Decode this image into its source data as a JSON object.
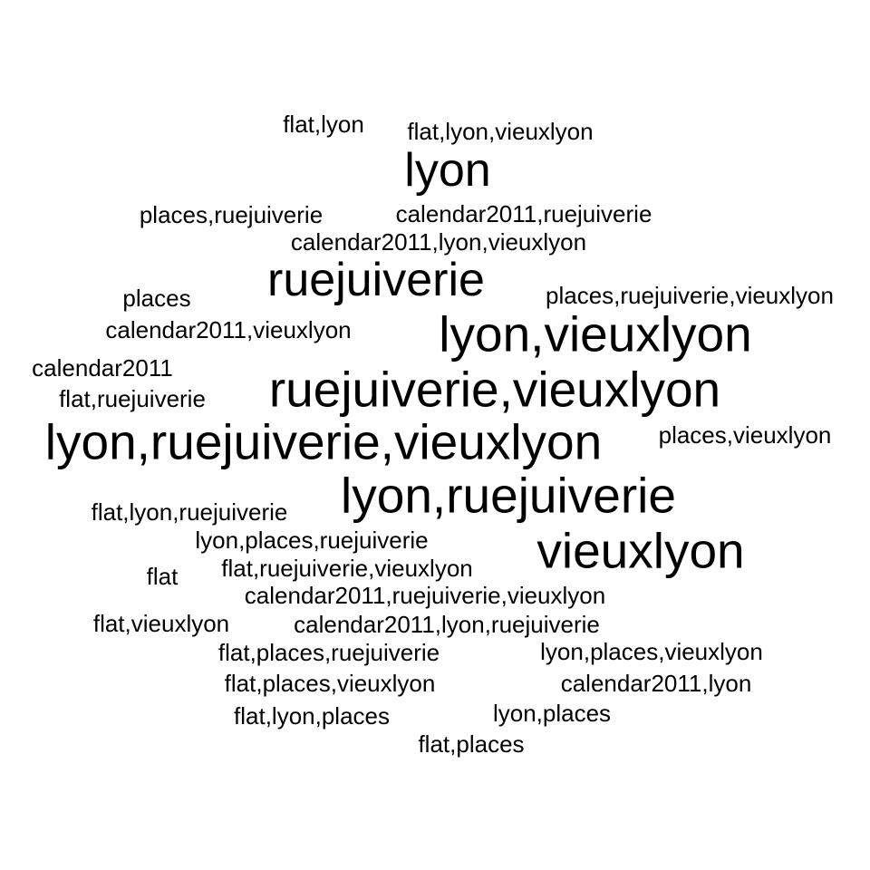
{
  "words": [
    {
      "text": "flat,lyon",
      "weight": 1
    },
    {
      "text": "flat,lyon,vieuxlyon",
      "weight": 1
    },
    {
      "text": "lyon",
      "weight": 2
    },
    {
      "text": "places,ruejuiverie",
      "weight": 1
    },
    {
      "text": "calendar2011,ruejuiverie",
      "weight": 1
    },
    {
      "text": "calendar2011,lyon,vieuxlyon",
      "weight": 1
    },
    {
      "text": "ruejuiverie",
      "weight": 2
    },
    {
      "text": "places",
      "weight": 1
    },
    {
      "text": "places,ruejuiverie,vieuxlyon",
      "weight": 1
    },
    {
      "text": "calendar2011,vieuxlyon",
      "weight": 1
    },
    {
      "text": "lyon,vieuxlyon",
      "weight": 3
    },
    {
      "text": "calendar2011",
      "weight": 1
    },
    {
      "text": "ruejuiverie,vieuxlyon",
      "weight": 3
    },
    {
      "text": "flat,ruejuiverie",
      "weight": 1
    },
    {
      "text": "lyon,ruejuiverie,vieuxlyon",
      "weight": 3
    },
    {
      "text": "places,vieuxlyon",
      "weight": 1
    },
    {
      "text": "lyon,ruejuiverie",
      "weight": 3
    },
    {
      "text": "flat,lyon,ruejuiverie",
      "weight": 1
    },
    {
      "text": "lyon,places,ruejuiverie",
      "weight": 1
    },
    {
      "text": "vieuxlyon",
      "weight": 3
    },
    {
      "text": "flat",
      "weight": 1
    },
    {
      "text": "flat,ruejuiverie,vieuxlyon",
      "weight": 1
    },
    {
      "text": "calendar2011,ruejuiverie,vieuxlyon",
      "weight": 1
    },
    {
      "text": "flat,vieuxlyon",
      "weight": 1
    },
    {
      "text": "calendar2011,lyon,ruejuiverie",
      "weight": 1
    },
    {
      "text": "flat,places,ruejuiverie",
      "weight": 1
    },
    {
      "text": "lyon,places,vieuxlyon",
      "weight": 1
    },
    {
      "text": "flat,places,vieuxlyon",
      "weight": 1
    },
    {
      "text": "calendar2011,lyon",
      "weight": 1
    },
    {
      "text": "flat,lyon,places",
      "weight": 1
    },
    {
      "text": "lyon,places",
      "weight": 1
    },
    {
      "text": "flat,places",
      "weight": 1
    }
  ]
}
